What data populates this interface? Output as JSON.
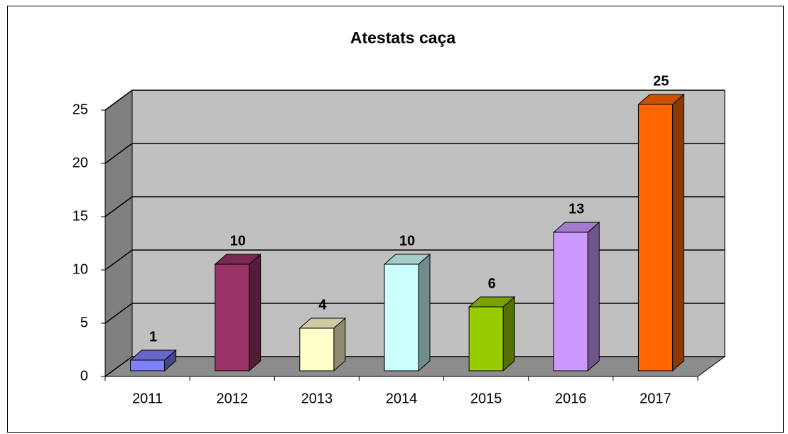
{
  "chart_data": {
    "type": "bar3d",
    "title": "Atestats caça",
    "categories": [
      "2011",
      "2012",
      "2013",
      "2014",
      "2015",
      "2016",
      "2017"
    ],
    "values": [
      1,
      10,
      4,
      10,
      6,
      13,
      25
    ],
    "colors": [
      "#8080ff",
      "#993366",
      "#ffffcc",
      "#ccffff",
      "#99cc00",
      "#cc99ff",
      "#ff6600"
    ],
    "ylim": [
      0,
      25
    ],
    "yticks": [
      0,
      5,
      10,
      15,
      20,
      25
    ],
    "grid": true
  }
}
